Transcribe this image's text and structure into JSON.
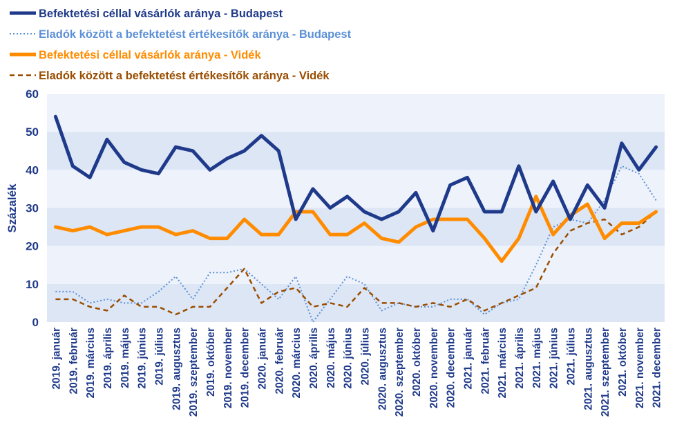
{
  "colors": {
    "budapest_buy": "#1f3a8a",
    "budapest_sell": "#5b8fd6",
    "videk_buy": "#ff8c00",
    "videk_sell": "#9a4d00",
    "band_dark": "#dde6f5",
    "band_light": "#eef2fb",
    "axis_text": "#1f3a8a"
  },
  "chart_data": {
    "type": "line",
    "ylabel": "Százalék",
    "ylim": [
      0,
      60
    ],
    "yticks": [
      0,
      10,
      20,
      30,
      40,
      50,
      60
    ],
    "legend_position": "top-left",
    "categories": [
      "2019. január",
      "2019. február",
      "2019. március",
      "2019. április",
      "2019. május",
      "2019. június",
      "2019. július",
      "2019. augusztus",
      "2019. szeptember",
      "2019. október",
      "2019. november",
      "2019. december",
      "2020. január",
      "2020. február",
      "2020. március",
      "2020. április",
      "2020. május",
      "2020. június",
      "2020. július",
      "2020. augusztus",
      "2020. szeptember",
      "2020. október",
      "2020. november",
      "2020. december",
      "2021. január",
      "2021. február",
      "2021. március",
      "2021. április",
      "2021. május",
      "2021. június",
      "2021. július",
      "2021. augusztus",
      "2021. szeptember",
      "2021. október",
      "2021. november",
      "2021. december"
    ],
    "series": [
      {
        "name": "Befektetési céllal vásárlók aránya - Budapest",
        "style": "solid-thick",
        "color": "#1f3a8a",
        "values": [
          54,
          41,
          38,
          48,
          42,
          40,
          39,
          46,
          45,
          40,
          43,
          45,
          49,
          45,
          27,
          35,
          30,
          33,
          29,
          27,
          29,
          34,
          24,
          36,
          38,
          29,
          29,
          41,
          29,
          37,
          27,
          36,
          30,
          47,
          40,
          46
        ]
      },
      {
        "name": "Eladók között a befektetést értékesítők aránya - Budapest",
        "style": "dotted",
        "color": "#5b8fd6",
        "values": [
          8,
          8,
          5,
          6,
          5,
          5,
          8,
          12,
          6,
          13,
          13,
          14,
          10,
          6,
          12,
          0,
          6,
          12,
          10,
          3,
          5,
          4,
          4,
          6,
          6,
          2,
          5,
          6,
          15,
          25,
          27,
          26,
          32,
          41,
          39,
          32
        ]
      },
      {
        "name": "Befektetési céllal vásárlók aránya - Vidék",
        "style": "solid-thick",
        "color": "#ff8c00",
        "values": [
          25,
          24,
          25,
          23,
          24,
          25,
          25,
          23,
          24,
          22,
          22,
          27,
          23,
          23,
          29,
          29,
          23,
          23,
          26,
          22,
          21,
          25,
          27,
          27,
          27,
          22,
          16,
          22,
          33,
          23,
          28,
          31,
          22,
          26,
          26,
          29
        ]
      },
      {
        "name": "Eladók között a befektetést értékesítők aránya - Vidék",
        "style": "dashed",
        "color": "#9a4d00",
        "values": [
          6,
          6,
          4,
          3,
          7,
          4,
          4,
          2,
          4,
          4,
          9,
          14,
          5,
          8,
          9,
          4,
          5,
          4,
          9,
          5,
          5,
          4,
          5,
          4,
          6,
          3,
          5,
          7,
          9,
          18,
          24,
          26,
          27,
          23,
          25,
          29
        ]
      }
    ]
  }
}
